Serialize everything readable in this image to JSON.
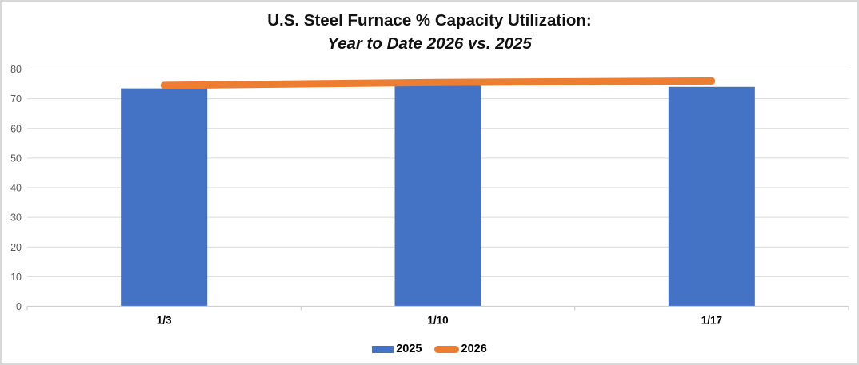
{
  "chart_data": {
    "type": "combo-bar-line",
    "title": "U.S. Steel Furnace % Capacity Utilization:",
    "subtitle": "Year to Date 2026 vs. 2025",
    "categories": [
      "1/3",
      "1/10",
      "1/17"
    ],
    "series": [
      {
        "name": "2025",
        "type": "bar",
        "color": "#4472C4",
        "values": [
          73.5,
          74.4,
          74.0
        ]
      },
      {
        "name": "2026",
        "type": "line",
        "color": "#ED7D31",
        "values": [
          74.5,
          75.5,
          76.0
        ]
      }
    ],
    "xlabel": "",
    "ylabel": "",
    "ylim": [
      0,
      80
    ],
    "yticks": [
      0,
      10,
      20,
      30,
      40,
      50,
      60,
      70,
      80
    ],
    "grid": true,
    "legend_position": "bottom",
    "colors": {
      "grid_line": "#d9d9d9",
      "axis_line": "#cfcfcf",
      "y_tick_label": "#595959",
      "x_tick_label": "#000000",
      "title_text": "#111111",
      "background": "#ffffff",
      "frame_border": "#d8d8d8"
    }
  }
}
